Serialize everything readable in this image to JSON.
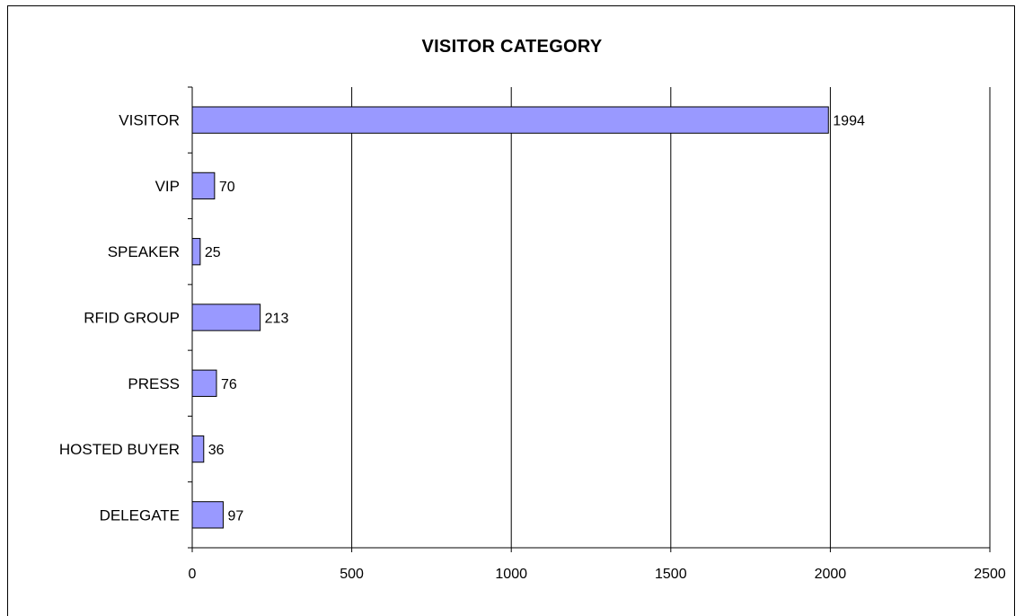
{
  "chart_data": {
    "type": "bar",
    "orientation": "horizontal",
    "title": "VISITOR CATEGORY",
    "xlabel": "",
    "ylabel": "",
    "categories": [
      "VISITOR",
      "VIP",
      "SPEAKER",
      "RFID GROUP",
      "PRESS",
      "HOSTED BUYER",
      "DELEGATE"
    ],
    "values": [
      1994,
      70,
      25,
      213,
      76,
      36,
      97
    ],
    "xlim": [
      0,
      2500
    ],
    "x_ticks": [
      0,
      500,
      1000,
      1500,
      2000,
      2500
    ],
    "grid": "vertical",
    "legend": "none",
    "data_labels": true,
    "colors": {
      "bar_fill": "#9999ff",
      "bar_stroke": "#000000",
      "grid": "#000000",
      "background": "#ffffff"
    }
  }
}
